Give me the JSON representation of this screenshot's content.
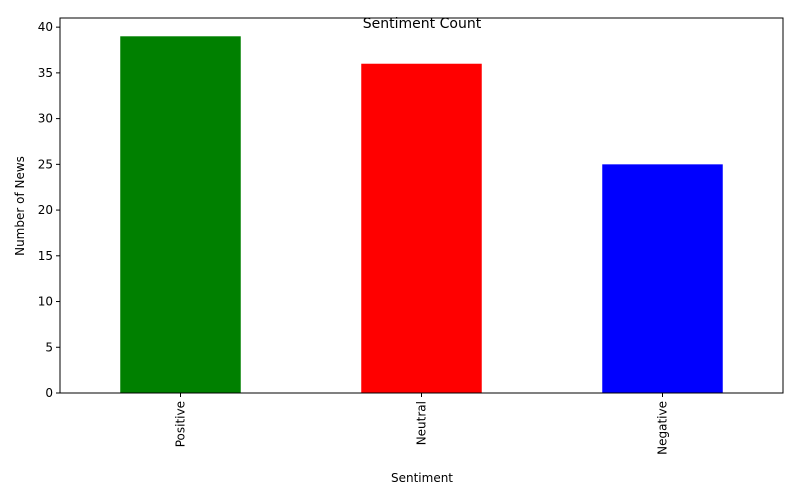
{
  "chart_data": {
    "type": "bar",
    "title": "Sentiment Count",
    "xlabel": "Sentiment",
    "ylabel": "Number of News",
    "categories": [
      "Positive",
      "Neutral",
      "Negative"
    ],
    "values": [
      39,
      36,
      25
    ],
    "colors": [
      "#008000",
      "#ff0000",
      "#0000ff"
    ],
    "ylim": [
      0,
      41
    ],
    "yticks": [
      0,
      5,
      10,
      15,
      20,
      25,
      30,
      35,
      40
    ],
    "grid": false,
    "legend": "none"
  }
}
